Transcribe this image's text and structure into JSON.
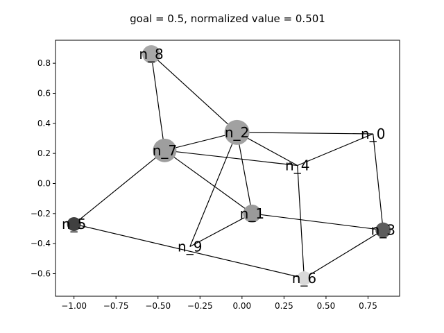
{
  "title": "goal = 0.5, normalized value = 0.501",
  "axes": {
    "xlim": [
      -1.11,
      0.938
    ],
    "ylim": [
      -0.75,
      0.953
    ],
    "xticks": [
      -1.0,
      -0.75,
      -0.5,
      -0.25,
      0.0,
      0.25,
      0.5,
      0.75
    ],
    "xtick_labels": [
      "−1.00",
      "−0.75",
      "−0.50",
      "−0.25",
      "0.00",
      "0.25",
      "0.50",
      "0.75"
    ],
    "yticks": [
      -0.6,
      -0.4,
      -0.2,
      0.0,
      0.2,
      0.4,
      0.6,
      0.8
    ],
    "ytick_labels": [
      "−0.6",
      "−0.4",
      "−0.2",
      "0.0",
      "0.2",
      "0.4",
      "0.6",
      "0.8"
    ],
    "grid": false
  },
  "chart_data": {
    "type": "network-graph",
    "nodes": [
      {
        "id": "n_0",
        "label": "n_0",
        "x": 0.78,
        "y": 0.33,
        "size": 0,
        "color": "#ffffff"
      },
      {
        "id": "n_1",
        "label": "n_1",
        "x": 0.06,
        "y": -0.2,
        "size": 13,
        "color": "#9a9a9a"
      },
      {
        "id": "n_2",
        "label": "n_2",
        "x": -0.03,
        "y": 0.34,
        "size": 18,
        "color": "#a1a1a1"
      },
      {
        "id": "n_3",
        "label": "n_3",
        "x": 0.84,
        "y": -0.31,
        "size": 11,
        "color": "#5c5c5c"
      },
      {
        "id": "n_4",
        "label": "n_4",
        "x": 0.33,
        "y": 0.12,
        "size": 0,
        "color": "#ffffff"
      },
      {
        "id": "n_5",
        "label": "n_5",
        "x": -1.0,
        "y": -0.27,
        "size": 10,
        "color": "#404040"
      },
      {
        "id": "n_6",
        "label": "n_6",
        "x": 0.37,
        "y": -0.63,
        "size": 10,
        "color": "#d9d9d9"
      },
      {
        "id": "n_7",
        "label": "n_7",
        "x": -0.46,
        "y": 0.22,
        "size": 17,
        "color": "#9e9e9e"
      },
      {
        "id": "n_8",
        "label": "n_8",
        "x": -0.54,
        "y": 0.86,
        "size": 13,
        "color": "#a8a8a8"
      },
      {
        "id": "n_9",
        "label": "n_9",
        "x": -0.31,
        "y": -0.42,
        "size": 0,
        "color": "#ffffff"
      }
    ],
    "edges": [
      [
        "n_8",
        "n_7"
      ],
      [
        "n_8",
        "n_2"
      ],
      [
        "n_2",
        "n_0"
      ],
      [
        "n_2",
        "n_7"
      ],
      [
        "n_2",
        "n_4"
      ],
      [
        "n_2",
        "n_1"
      ],
      [
        "n_2",
        "n_9"
      ],
      [
        "n_0",
        "n_4"
      ],
      [
        "n_0",
        "n_3"
      ],
      [
        "n_7",
        "n_4"
      ],
      [
        "n_7",
        "n_1"
      ],
      [
        "n_7",
        "n_5"
      ],
      [
        "n_4",
        "n_6"
      ],
      [
        "n_1",
        "n_3"
      ],
      [
        "n_1",
        "n_9"
      ],
      [
        "n_5",
        "n_6"
      ],
      [
        "n_3",
        "n_6"
      ]
    ]
  }
}
